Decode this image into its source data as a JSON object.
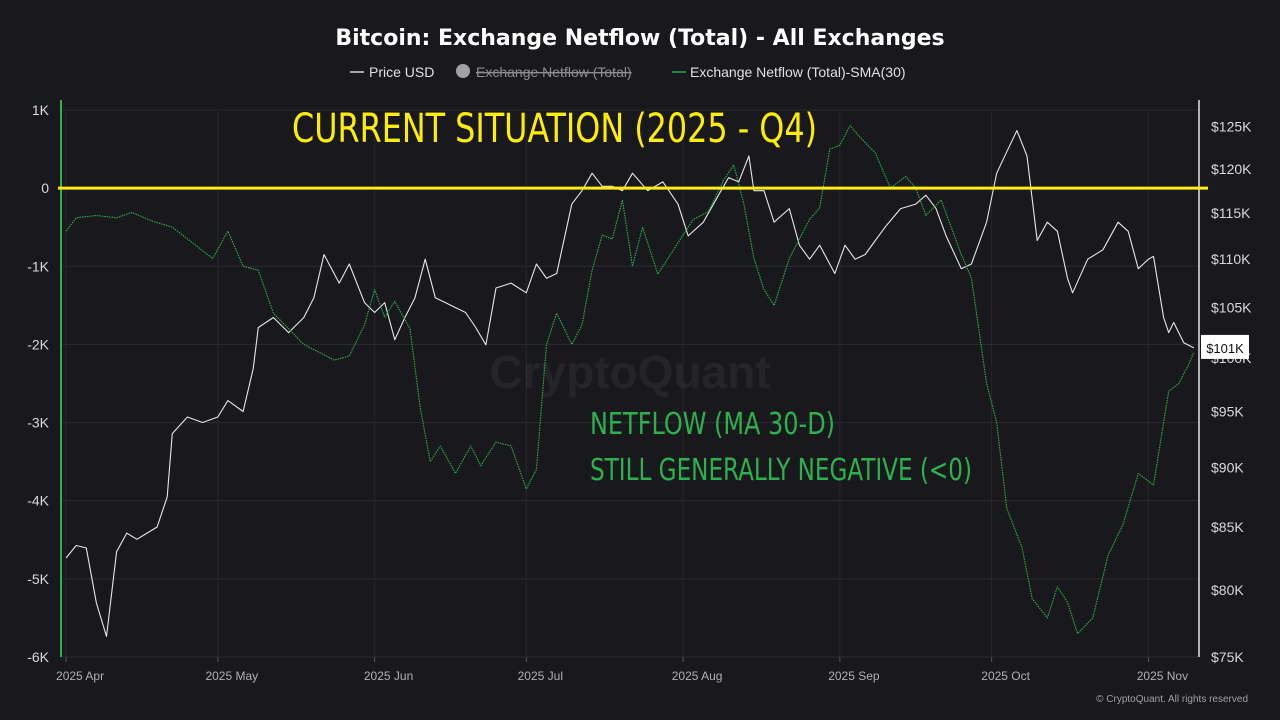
{
  "chart_data": {
    "type": "line",
    "title": "Bitcoin: Exchange Netflow (Total) - All Exchanges",
    "legend": [
      {
        "name": "Price USD",
        "color": "#e6e6e6",
        "visible": true
      },
      {
        "name": "Exchange Netflow (Total)",
        "color": "#9a9a9a",
        "visible": false
      },
      {
        "name": "Exchange Netflow (Total)-SMA(30)",
        "color": "#2bb24c",
        "visible": true
      }
    ],
    "legend_position": "top-center",
    "x_range": [
      "2025-03-31",
      "2025-11-11"
    ],
    "x_ticks": [
      {
        "date": "2025-04-01",
        "label": "2025 Apr"
      },
      {
        "date": "2025-05-01",
        "label": "2025 May"
      },
      {
        "date": "2025-06-01",
        "label": "2025 Jun"
      },
      {
        "date": "2025-07-01",
        "label": "2025 Jul"
      },
      {
        "date": "2025-08-01",
        "label": "2025 Aug"
      },
      {
        "date": "2025-09-01",
        "label": "2025 Sep"
      },
      {
        "date": "2025-10-01",
        "label": "2025 Oct"
      },
      {
        "date": "2025-11-01",
        "label": "2025 Nov"
      }
    ],
    "y_left": {
      "range": [
        -6000,
        1000
      ],
      "ticks": [
        1000,
        0,
        -1000,
        -2000,
        -3000,
        -4000,
        -5000,
        -6000
      ],
      "tick_labels": [
        "1K",
        "0",
        "-1K",
        "-2K",
        "-3K",
        "-4K",
        "-5K",
        "-6K"
      ]
    },
    "y_right": {
      "scale": "log",
      "range": [
        75000,
        127000
      ],
      "ticks": [
        125000,
        120000,
        115000,
        110000,
        105000,
        100000,
        95000,
        90000,
        85000,
        80000,
        75000
      ],
      "tick_labels": [
        "$125K",
        "$120K",
        "$115K",
        "$110K",
        "$105K",
        "$100K",
        "$95K",
        "$90K",
        "$85K",
        "$80K",
        "$75K"
      ]
    },
    "grid": true,
    "current_price_label": "$101K",
    "current_price_value": 101000,
    "reference_line": {
      "axis": "left",
      "value": 0,
      "color": "#ffee00"
    },
    "series": [
      {
        "name": "Price USD",
        "axis": "right",
        "color": "#e6e6e6",
        "points": [
          [
            "2025-04-01",
            82500
          ],
          [
            "2025-04-03",
            83500
          ],
          [
            "2025-04-05",
            83300
          ],
          [
            "2025-04-07",
            79000
          ],
          [
            "2025-04-09",
            76500
          ],
          [
            "2025-04-11",
            83000
          ],
          [
            "2025-04-13",
            84500
          ],
          [
            "2025-04-15",
            84000
          ],
          [
            "2025-04-17",
            84500
          ],
          [
            "2025-04-19",
            85000
          ],
          [
            "2025-04-21",
            87500
          ],
          [
            "2025-04-22",
            93000
          ],
          [
            "2025-04-25",
            94500
          ],
          [
            "2025-04-28",
            94000
          ],
          [
            "2025-05-01",
            94500
          ],
          [
            "2025-05-03",
            96000
          ],
          [
            "2025-05-06",
            95000
          ],
          [
            "2025-05-08",
            99000
          ],
          [
            "2025-05-09",
            103000
          ],
          [
            "2025-05-12",
            104000
          ],
          [
            "2025-05-15",
            102500
          ],
          [
            "2025-05-18",
            104000
          ],
          [
            "2025-05-20",
            106000
          ],
          [
            "2025-05-22",
            110500
          ],
          [
            "2025-05-25",
            107500
          ],
          [
            "2025-05-27",
            109500
          ],
          [
            "2025-05-30",
            105500
          ],
          [
            "2025-06-01",
            104500
          ],
          [
            "2025-06-03",
            105500
          ],
          [
            "2025-06-05",
            101800
          ],
          [
            "2025-06-07",
            104000
          ],
          [
            "2025-06-09",
            106000
          ],
          [
            "2025-06-11",
            110000
          ],
          [
            "2025-06-13",
            106000
          ],
          [
            "2025-06-15",
            105500
          ],
          [
            "2025-06-17",
            105000
          ],
          [
            "2025-06-19",
            104500
          ],
          [
            "2025-06-21",
            103000
          ],
          [
            "2025-06-23",
            101300
          ],
          [
            "2025-06-25",
            107000
          ],
          [
            "2025-06-28",
            107500
          ],
          [
            "2025-07-01",
            106500
          ],
          [
            "2025-07-03",
            109500
          ],
          [
            "2025-07-05",
            108000
          ],
          [
            "2025-07-07",
            108500
          ],
          [
            "2025-07-10",
            116000
          ],
          [
            "2025-07-12",
            117500
          ],
          [
            "2025-07-14",
            119500
          ],
          [
            "2025-07-16",
            118000
          ],
          [
            "2025-07-18",
            118000
          ],
          [
            "2025-07-20",
            117500
          ],
          [
            "2025-07-22",
            119500
          ],
          [
            "2025-07-25",
            117500
          ],
          [
            "2025-07-28",
            118500
          ],
          [
            "2025-07-31",
            116000
          ],
          [
            "2025-08-02",
            112500
          ],
          [
            "2025-08-05",
            114000
          ],
          [
            "2025-08-08",
            117000
          ],
          [
            "2025-08-10",
            119000
          ],
          [
            "2025-08-12",
            118500
          ],
          [
            "2025-08-14",
            121500
          ],
          [
            "2025-08-15",
            117500
          ],
          [
            "2025-08-17",
            117500
          ],
          [
            "2025-08-19",
            114000
          ],
          [
            "2025-08-22",
            115500
          ],
          [
            "2025-08-24",
            111500
          ],
          [
            "2025-08-26",
            110000
          ],
          [
            "2025-08-28",
            111500
          ],
          [
            "2025-08-31",
            108500
          ],
          [
            "2025-09-02",
            111500
          ],
          [
            "2025-09-04",
            110000
          ],
          [
            "2025-09-06",
            110500
          ],
          [
            "2025-09-08",
            112000
          ],
          [
            "2025-09-10",
            113500
          ],
          [
            "2025-09-13",
            115500
          ],
          [
            "2025-09-16",
            116000
          ],
          [
            "2025-09-18",
            117000
          ],
          [
            "2025-09-20",
            115500
          ],
          [
            "2025-09-22",
            112500
          ],
          [
            "2025-09-25",
            109000
          ],
          [
            "2025-09-27",
            109500
          ],
          [
            "2025-09-30",
            114000
          ],
          [
            "2025-10-02",
            119500
          ],
          [
            "2025-10-04",
            122000
          ],
          [
            "2025-10-06",
            124500
          ],
          [
            "2025-10-08",
            121500
          ],
          [
            "2025-10-10",
            112000
          ],
          [
            "2025-10-12",
            114000
          ],
          [
            "2025-10-14",
            113000
          ],
          [
            "2025-10-16",
            108000
          ],
          [
            "2025-10-17",
            106500
          ],
          [
            "2025-10-20",
            110000
          ],
          [
            "2025-10-23",
            111000
          ],
          [
            "2025-10-26",
            114000
          ],
          [
            "2025-10-28",
            113000
          ],
          [
            "2025-10-30",
            109000
          ],
          [
            "2025-11-01",
            110000
          ],
          [
            "2025-11-02",
            110300
          ],
          [
            "2025-11-04",
            104000
          ],
          [
            "2025-11-05",
            102500
          ],
          [
            "2025-11-06",
            103500
          ],
          [
            "2025-11-08",
            101500
          ],
          [
            "2025-11-10",
            101000
          ]
        ]
      },
      {
        "name": "Exchange Netflow (Total)-SMA(30)",
        "axis": "left",
        "color": "#2bb24c",
        "points": [
          [
            "2025-04-01",
            -550
          ],
          [
            "2025-04-03",
            -380
          ],
          [
            "2025-04-07",
            -350
          ],
          [
            "2025-04-11",
            -380
          ],
          [
            "2025-04-14",
            -310
          ],
          [
            "2025-04-18",
            -420
          ],
          [
            "2025-04-22",
            -500
          ],
          [
            "2025-04-26",
            -700
          ],
          [
            "2025-04-30",
            -900
          ],
          [
            "2025-05-03",
            -550
          ],
          [
            "2025-05-06",
            -1000
          ],
          [
            "2025-05-09",
            -1050
          ],
          [
            "2025-05-12",
            -1600
          ],
          [
            "2025-05-15",
            -1800
          ],
          [
            "2025-05-18",
            -2000
          ],
          [
            "2025-05-21",
            -2100
          ],
          [
            "2025-05-24",
            -2200
          ],
          [
            "2025-05-27",
            -2150
          ],
          [
            "2025-05-30",
            -1750
          ],
          [
            "2025-06-01",
            -1300
          ],
          [
            "2025-06-03",
            -1650
          ],
          [
            "2025-06-05",
            -1450
          ],
          [
            "2025-06-08",
            -1800
          ],
          [
            "2025-06-10",
            -2800
          ],
          [
            "2025-06-12",
            -3500
          ],
          [
            "2025-06-14",
            -3300
          ],
          [
            "2025-06-17",
            -3650
          ],
          [
            "2025-06-20",
            -3300
          ],
          [
            "2025-06-22",
            -3550
          ],
          [
            "2025-06-25",
            -3250
          ],
          [
            "2025-06-28",
            -3300
          ],
          [
            "2025-07-01",
            -3850
          ],
          [
            "2025-07-03",
            -3600
          ],
          [
            "2025-07-05",
            -2000
          ],
          [
            "2025-07-07",
            -1600
          ],
          [
            "2025-07-10",
            -2000
          ],
          [
            "2025-07-12",
            -1750
          ],
          [
            "2025-07-14",
            -1050
          ],
          [
            "2025-07-16",
            -600
          ],
          [
            "2025-07-18",
            -650
          ],
          [
            "2025-07-20",
            -150
          ],
          [
            "2025-07-22",
            -1000
          ],
          [
            "2025-07-24",
            -500
          ],
          [
            "2025-07-27",
            -1100
          ],
          [
            "2025-07-31",
            -700
          ],
          [
            "2025-08-03",
            -400
          ],
          [
            "2025-08-06",
            -300
          ],
          [
            "2025-08-09",
            100
          ],
          [
            "2025-08-11",
            300
          ],
          [
            "2025-08-13",
            -200
          ],
          [
            "2025-08-15",
            -900
          ],
          [
            "2025-08-17",
            -1300
          ],
          [
            "2025-08-19",
            -1500
          ],
          [
            "2025-08-22",
            -900
          ],
          [
            "2025-08-24",
            -650
          ],
          [
            "2025-08-26",
            -400
          ],
          [
            "2025-08-28",
            -250
          ],
          [
            "2025-08-30",
            500
          ],
          [
            "2025-09-01",
            550
          ],
          [
            "2025-09-03",
            800
          ],
          [
            "2025-09-05",
            650
          ],
          [
            "2025-09-08",
            450
          ],
          [
            "2025-09-11",
            0
          ],
          [
            "2025-09-14",
            150
          ],
          [
            "2025-09-16",
            0
          ],
          [
            "2025-09-18",
            -350
          ],
          [
            "2025-09-21",
            -150
          ],
          [
            "2025-09-25",
            -850
          ],
          [
            "2025-09-27",
            -1150
          ],
          [
            "2025-09-30",
            -2500
          ],
          [
            "2025-10-02",
            -3000
          ],
          [
            "2025-10-04",
            -4100
          ],
          [
            "2025-10-07",
            -4600
          ],
          [
            "2025-10-09",
            -5250
          ],
          [
            "2025-10-12",
            -5500
          ],
          [
            "2025-10-14",
            -5100
          ],
          [
            "2025-10-16",
            -5300
          ],
          [
            "2025-10-18",
            -5700
          ],
          [
            "2025-10-21",
            -5500
          ],
          [
            "2025-10-24",
            -4700
          ],
          [
            "2025-10-27",
            -4300
          ],
          [
            "2025-10-30",
            -3650
          ],
          [
            "2025-11-02",
            -3800
          ],
          [
            "2025-11-05",
            -2600
          ],
          [
            "2025-11-07",
            -2500
          ],
          [
            "2025-11-09",
            -2250
          ],
          [
            "2025-11-10",
            -2100
          ]
        ]
      }
    ],
    "annotations": [
      {
        "text": "CURRENT SITUATION (2025 - Q4)",
        "color": "#ffee00"
      },
      {
        "text": "NETFLOW (MA 30-D)",
        "color": "#2bb24c"
      },
      {
        "text": "STILL GENERALLY NEGATIVE (<0)",
        "color": "#2bb24c"
      }
    ]
  },
  "watermark": "CryptoQuant",
  "copyright": "© CryptoQuant. All rights reserved"
}
